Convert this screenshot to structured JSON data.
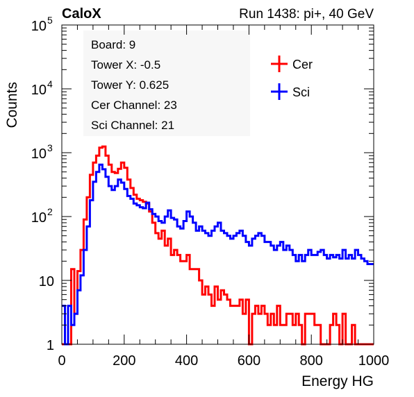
{
  "header": {
    "brand": "CaloX",
    "run_info": "Run 1438: pi+, 40 GeV"
  },
  "info_box": {
    "lines": [
      "Board: 9",
      "Tower X: -0.5",
      "Tower Y: 0.625",
      "Cer Channel: 23",
      "Sci Channel: 21"
    ]
  },
  "colors": {
    "cer": "#ff0000",
    "sci": "#0000ff",
    "axis": "#000000"
  },
  "chart_data": {
    "type": "line",
    "xlabel": "Energy HG",
    "ylabel": "Counts",
    "xlim": [
      0,
      1000
    ],
    "ylim": [
      1,
      100000
    ],
    "yscale": "log",
    "x_ticks": [
      0,
      200,
      400,
      600,
      800,
      1000
    ],
    "y_ticks": [
      {
        "value": 1,
        "base": "1",
        "exp": ""
      },
      {
        "value": 10,
        "base": "10",
        "exp": ""
      },
      {
        "value": 100,
        "base": "10",
        "exp": "2"
      },
      {
        "value": 1000,
        "base": "10",
        "exp": "3"
      },
      {
        "value": 10000,
        "base": "10",
        "exp": "4"
      },
      {
        "value": 100000,
        "base": "10",
        "exp": "5"
      }
    ],
    "legend_position": "top-right",
    "series": [
      {
        "name": "Cer",
        "color": "#ff0000",
        "x": [
          0,
          10,
          20,
          30,
          40,
          50,
          60,
          70,
          80,
          90,
          100,
          110,
          120,
          130,
          140,
          150,
          160,
          170,
          180,
          190,
          200,
          210,
          220,
          230,
          240,
          250,
          260,
          270,
          280,
          290,
          300,
          310,
          320,
          330,
          340,
          350,
          360,
          370,
          380,
          390,
          400,
          410,
          420,
          430,
          440,
          450,
          460,
          470,
          480,
          490,
          500,
          510,
          520,
          530,
          540,
          550,
          560,
          570,
          580,
          590,
          600,
          610,
          620,
          630,
          640,
          650,
          660,
          670,
          680,
          690,
          700,
          710,
          720,
          730,
          740,
          750,
          760,
          770,
          780,
          790,
          800,
          810,
          820,
          830,
          840,
          850,
          860,
          870,
          880,
          890,
          900,
          910,
          920,
          930,
          940,
          950,
          960,
          970,
          980,
          990
        ],
        "y": [
          1,
          1,
          1,
          15,
          3,
          14,
          30,
          90,
          200,
          450,
          700,
          900,
          1200,
          1250,
          900,
          650,
          500,
          480,
          560,
          700,
          580,
          380,
          280,
          220,
          190,
          180,
          170,
          160,
          120,
          80,
          55,
          45,
          60,
          35,
          45,
          25,
          30,
          25,
          20,
          20,
          25,
          15,
          15,
          15,
          10,
          6,
          8,
          6,
          4,
          8,
          5,
          7,
          6,
          5,
          4,
          4,
          4,
          5,
          3,
          5,
          1,
          3,
          4,
          3,
          4,
          3,
          2,
          3,
          2,
          4,
          2,
          2,
          3,
          3,
          2,
          3,
          2,
          1,
          3,
          3,
          3,
          2,
          2,
          1,
          1,
          1,
          2,
          3,
          2,
          1,
          3,
          1,
          1,
          2,
          1,
          1,
          1,
          1,
          1,
          1
        ]
      },
      {
        "name": "Sci",
        "color": "#0000ff",
        "x": [
          0,
          10,
          20,
          30,
          40,
          50,
          60,
          70,
          80,
          90,
          100,
          110,
          120,
          130,
          140,
          150,
          160,
          170,
          180,
          190,
          200,
          210,
          220,
          230,
          240,
          250,
          260,
          270,
          280,
          290,
          300,
          310,
          320,
          330,
          340,
          350,
          360,
          370,
          380,
          390,
          400,
          410,
          420,
          430,
          440,
          450,
          460,
          470,
          480,
          490,
          500,
          510,
          520,
          530,
          540,
          550,
          560,
          570,
          580,
          590,
          600,
          610,
          620,
          630,
          640,
          650,
          660,
          670,
          680,
          690,
          700,
          710,
          720,
          730,
          740,
          750,
          760,
          770,
          780,
          790,
          800,
          810,
          820,
          830,
          840,
          850,
          860,
          870,
          880,
          890,
          900,
          910,
          920,
          930,
          940,
          950,
          960,
          970,
          980,
          990
        ],
        "y": [
          4,
          1,
          4,
          2,
          3,
          7,
          12,
          30,
          70,
          180,
          350,
          500,
          650,
          550,
          420,
          300,
          260,
          300,
          380,
          340,
          270,
          210,
          190,
          160,
          150,
          140,
          135,
          165,
          130,
          110,
          100,
          85,
          80,
          100,
          125,
          95,
          90,
          70,
          65,
          85,
          120,
          100,
          80,
          60,
          70,
          60,
          55,
          50,
          60,
          70,
          80,
          60,
          55,
          50,
          45,
          50,
          55,
          60,
          50,
          40,
          35,
          45,
          50,
          55,
          50,
          40,
          40,
          35,
          30,
          35,
          40,
          30,
          35,
          30,
          25,
          20,
          25,
          20,
          25,
          30,
          25,
          25,
          28,
          30,
          25,
          22,
          25,
          23,
          25,
          22,
          30,
          22,
          25,
          22,
          30,
          25,
          22,
          20,
          18,
          18
        ]
      }
    ]
  }
}
